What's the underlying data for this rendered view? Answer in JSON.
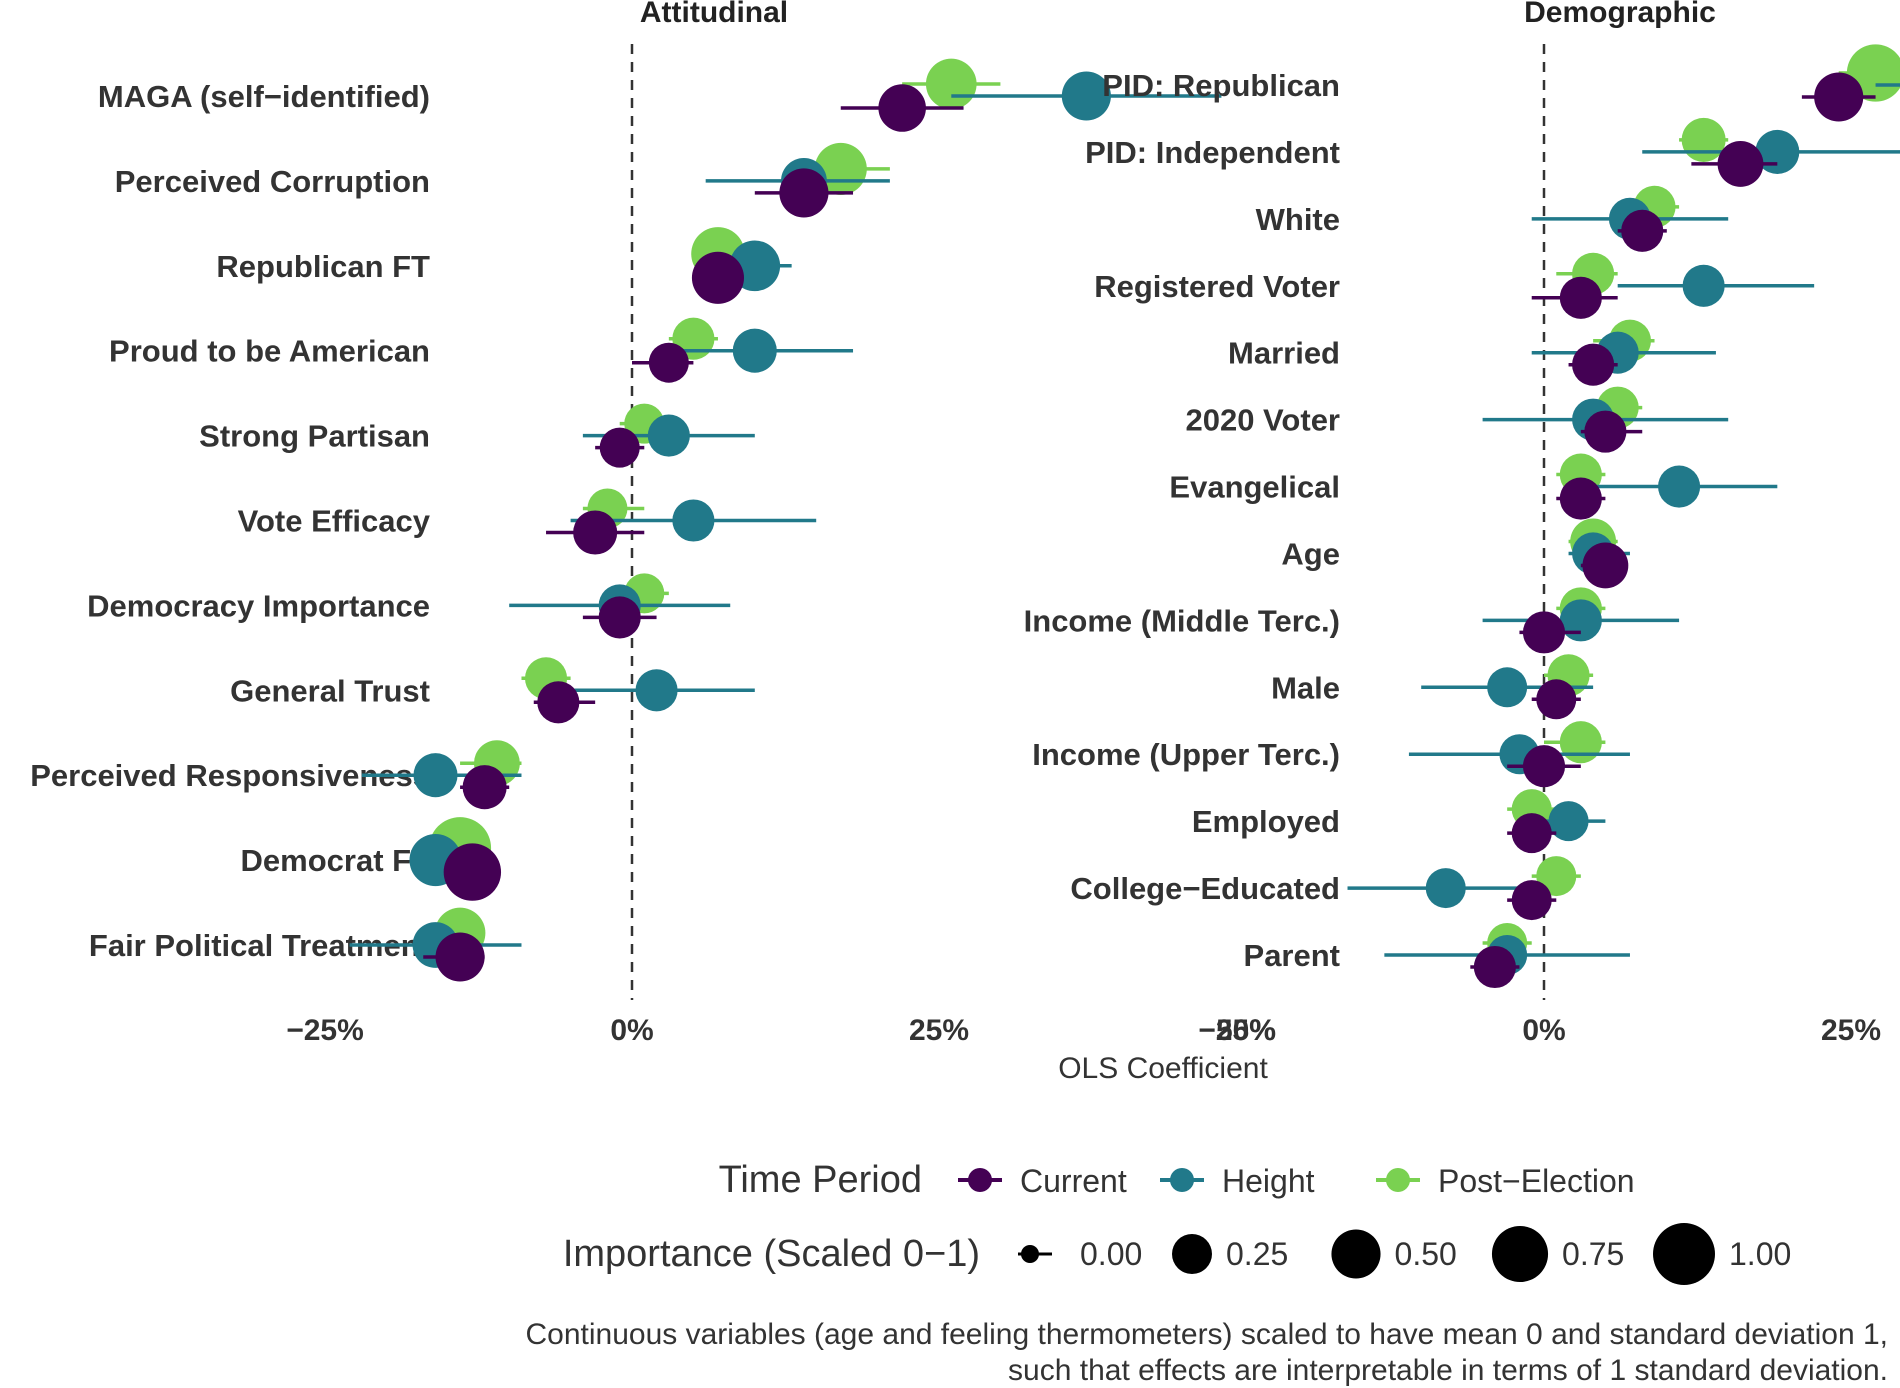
{
  "chart_data": {
    "type": "scatter",
    "xlabel": "OLS Coefficient",
    "xlim": [
      -0.3,
      0.5
    ],
    "x_ticks": [
      "−25%",
      "0%",
      "25%",
      "50%"
    ],
    "x_tick_values": [
      -0.25,
      0,
      0.25,
      0.5
    ],
    "reference_line": 0,
    "series_colors": {
      "Current": "#440154",
      "Height": "#21798a",
      "Post−Election": "#7ad151"
    },
    "legend": {
      "time_title": "Time Period",
      "time_items": [
        "Current",
        "Height",
        "Post−Election"
      ],
      "size_title": "Importance (Scaled 0−1)",
      "size_items": [
        "0.00",
        "0.25",
        "0.50",
        "0.75",
        "1.00"
      ],
      "size_values": [
        0,
        0.25,
        0.5,
        0.75,
        1.0
      ]
    },
    "caption": [
      "Continuous variables (age and feeling thermometers) scaled to have mean 0 and standard deviation 1,",
      "such that effects are interpretable in terms of 1 standard deviation."
    ],
    "panels": [
      {
        "title": "Attitudinal",
        "categories": [
          {
            "label": "MAGA (self−identified)",
            "points": [
              {
                "series": "Post−Election",
                "x": 0.26,
                "lo": 0.22,
                "hi": 0.3,
                "size": 0.55
              },
              {
                "series": "Height",
                "x": 0.37,
                "lo": 0.26,
                "hi": 0.48,
                "size": 0.5
              },
              {
                "series": "Current",
                "x": 0.22,
                "lo": 0.17,
                "hi": 0.27,
                "size": 0.45
              }
            ]
          },
          {
            "label": "Perceived Corruption",
            "points": [
              {
                "series": "Post−Election",
                "x": 0.17,
                "lo": 0.13,
                "hi": 0.21,
                "size": 0.6
              },
              {
                "series": "Height",
                "x": 0.14,
                "lo": 0.06,
                "hi": 0.21,
                "size": 0.4
              },
              {
                "series": "Current",
                "x": 0.14,
                "lo": 0.1,
                "hi": 0.18,
                "size": 0.5
              }
            ]
          },
          {
            "label": "Republican FT",
            "points": [
              {
                "series": "Post−Election",
                "x": 0.07,
                "lo": 0.05,
                "hi": 0.09,
                "size": 0.65
              },
              {
                "series": "Height",
                "x": 0.1,
                "lo": 0.07,
                "hi": 0.13,
                "size": 0.55
              },
              {
                "series": "Current",
                "x": 0.07,
                "lo": 0.05,
                "hi": 0.09,
                "size": 0.6
              }
            ]
          },
          {
            "label": "Proud to be American",
            "points": [
              {
                "series": "Post−Election",
                "x": 0.05,
                "lo": 0.03,
                "hi": 0.07,
                "size": 0.3
              },
              {
                "series": "Height",
                "x": 0.1,
                "lo": 0.03,
                "hi": 0.18,
                "size": 0.35
              },
              {
                "series": "Current",
                "x": 0.03,
                "lo": 0.0,
                "hi": 0.05,
                "size": 0.25
              }
            ]
          },
          {
            "label": "Strong Partisan",
            "points": [
              {
                "series": "Post−Election",
                "x": 0.01,
                "lo": -0.01,
                "hi": 0.03,
                "size": 0.25
              },
              {
                "series": "Height",
                "x": 0.03,
                "lo": -0.04,
                "hi": 0.1,
                "size": 0.3
              },
              {
                "series": "Current",
                "x": -0.01,
                "lo": -0.03,
                "hi": 0.01,
                "size": 0.25
              }
            ]
          },
          {
            "label": "Vote Efficacy",
            "points": [
              {
                "series": "Post−Election",
                "x": -0.02,
                "lo": -0.04,
                "hi": 0.01,
                "size": 0.25
              },
              {
                "series": "Height",
                "x": 0.05,
                "lo": -0.05,
                "hi": 0.15,
                "size": 0.3
              },
              {
                "series": "Current",
                "x": -0.03,
                "lo": -0.07,
                "hi": 0.01,
                "size": 0.35
              }
            ]
          },
          {
            "label": "Democracy Importance",
            "points": [
              {
                "series": "Post−Election",
                "x": 0.01,
                "lo": -0.01,
                "hi": 0.03,
                "size": 0.25
              },
              {
                "series": "Height",
                "x": -0.01,
                "lo": -0.1,
                "hi": 0.08,
                "size": 0.3
              },
              {
                "series": "Current",
                "x": -0.01,
                "lo": -0.04,
                "hi": 0.02,
                "size": 0.3
              }
            ]
          },
          {
            "label": "General Trust",
            "points": [
              {
                "series": "Post−Election",
                "x": -0.07,
                "lo": -0.09,
                "hi": -0.05,
                "size": 0.3
              },
              {
                "series": "Height",
                "x": 0.02,
                "lo": -0.06,
                "hi": 0.1,
                "size": 0.3
              },
              {
                "series": "Current",
                "x": -0.06,
                "lo": -0.08,
                "hi": -0.03,
                "size": 0.3
              }
            ]
          },
          {
            "label": "Perceived Responsiveness",
            "points": [
              {
                "series": "Post−Election",
                "x": -0.11,
                "lo": -0.14,
                "hi": -0.09,
                "size": 0.4
              },
              {
                "series": "Height",
                "x": -0.16,
                "lo": -0.22,
                "hi": -0.09,
                "size": 0.35
              },
              {
                "series": "Current",
                "x": -0.12,
                "lo": -0.14,
                "hi": -0.1,
                "size": 0.35
              }
            ]
          },
          {
            "label": "Democrat FT",
            "points": [
              {
                "series": "Post−Election",
                "x": -0.14,
                "lo": -0.16,
                "hi": -0.12,
                "size": 1.0
              },
              {
                "series": "Height",
                "x": -0.16,
                "lo": -0.18,
                "hi": -0.14,
                "size": 0.6
              },
              {
                "series": "Current",
                "x": -0.13,
                "lo": -0.15,
                "hi": -0.11,
                "size": 0.8
              }
            ]
          },
          {
            "label": "Fair Political Treatment",
            "points": [
              {
                "series": "Post−Election",
                "x": -0.14,
                "lo": -0.17,
                "hi": -0.12,
                "size": 0.55
              },
              {
                "series": "Height",
                "x": -0.16,
                "lo": -0.23,
                "hi": -0.09,
                "size": 0.4
              },
              {
                "series": "Current",
                "x": -0.14,
                "lo": -0.17,
                "hi": -0.12,
                "size": 0.5
              }
            ]
          }
        ]
      },
      {
        "title": "Demographic",
        "categories": [
          {
            "label": "PID: Republican",
            "points": [
              {
                "series": "Post−Election",
                "x": 0.27,
                "lo": 0.24,
                "hi": 0.3,
                "size": 0.8
              },
              {
                "series": "Height",
                "x": 0.33,
                "lo": 0.27,
                "hi": 0.4,
                "size": 0.45
              },
              {
                "series": "Current",
                "x": 0.24,
                "lo": 0.21,
                "hi": 0.27,
                "size": 0.5
              }
            ]
          },
          {
            "label": "PID: Independent",
            "points": [
              {
                "series": "Post−Election",
                "x": 0.13,
                "lo": 0.11,
                "hi": 0.15,
                "size": 0.35
              },
              {
                "series": "Height",
                "x": 0.19,
                "lo": 0.08,
                "hi": 0.3,
                "size": 0.35
              },
              {
                "series": "Current",
                "x": 0.16,
                "lo": 0.12,
                "hi": 0.19,
                "size": 0.4
              }
            ]
          },
          {
            "label": "White",
            "points": [
              {
                "series": "Post−Election",
                "x": 0.09,
                "lo": 0.07,
                "hi": 0.11,
                "size": 0.3
              },
              {
                "series": "Height",
                "x": 0.07,
                "lo": -0.01,
                "hi": 0.15,
                "size": 0.3
              },
              {
                "series": "Current",
                "x": 0.08,
                "lo": 0.06,
                "hi": 0.1,
                "size": 0.3
              }
            ]
          },
          {
            "label": "Registered Voter",
            "points": [
              {
                "series": "Post−Election",
                "x": 0.04,
                "lo": 0.01,
                "hi": 0.06,
                "size": 0.3
              },
              {
                "series": "Height",
                "x": 0.13,
                "lo": 0.06,
                "hi": 0.22,
                "size": 0.3
              },
              {
                "series": "Current",
                "x": 0.03,
                "lo": -0.01,
                "hi": 0.06,
                "size": 0.3
              }
            ]
          },
          {
            "label": "Married",
            "points": [
              {
                "series": "Post−Election",
                "x": 0.07,
                "lo": 0.04,
                "hi": 0.09,
                "size": 0.3
              },
              {
                "series": "Height",
                "x": 0.06,
                "lo": -0.01,
                "hi": 0.14,
                "size": 0.3
              },
              {
                "series": "Current",
                "x": 0.04,
                "lo": 0.02,
                "hi": 0.06,
                "size": 0.3
              }
            ]
          },
          {
            "label": "2020 Voter",
            "points": [
              {
                "series": "Post−Election",
                "x": 0.06,
                "lo": 0.04,
                "hi": 0.08,
                "size": 0.3
              },
              {
                "series": "Height",
                "x": 0.04,
                "lo": -0.05,
                "hi": 0.15,
                "size": 0.3
              },
              {
                "series": "Current",
                "x": 0.05,
                "lo": 0.03,
                "hi": 0.08,
                "size": 0.3
              }
            ]
          },
          {
            "label": "Evangelical",
            "points": [
              {
                "series": "Post−Election",
                "x": 0.03,
                "lo": 0.01,
                "hi": 0.05,
                "size": 0.3
              },
              {
                "series": "Height",
                "x": 0.11,
                "lo": 0.03,
                "hi": 0.19,
                "size": 0.3
              },
              {
                "series": "Current",
                "x": 0.03,
                "lo": 0.01,
                "hi": 0.05,
                "size": 0.3
              }
            ]
          },
          {
            "label": "Age",
            "points": [
              {
                "series": "Post−Election",
                "x": 0.04,
                "lo": 0.02,
                "hi": 0.06,
                "size": 0.4
              },
              {
                "series": "Height",
                "x": 0.04,
                "lo": 0.02,
                "hi": 0.07,
                "size": 0.3
              },
              {
                "series": "Current",
                "x": 0.05,
                "lo": 0.03,
                "hi": 0.06,
                "size": 0.4
              }
            ]
          },
          {
            "label": "Income (Middle Terc.)",
            "points": [
              {
                "series": "Post−Election",
                "x": 0.03,
                "lo": 0.01,
                "hi": 0.05,
                "size": 0.3
              },
              {
                "series": "Height",
                "x": 0.03,
                "lo": -0.05,
                "hi": 0.11,
                "size": 0.3
              },
              {
                "series": "Current",
                "x": 0.0,
                "lo": -0.02,
                "hi": 0.03,
                "size": 0.3
              }
            ]
          },
          {
            "label": "Male",
            "points": [
              {
                "series": "Post−Election",
                "x": 0.02,
                "lo": 0.0,
                "hi": 0.04,
                "size": 0.3
              },
              {
                "series": "Height",
                "x": -0.03,
                "lo": -0.1,
                "hi": 0.04,
                "size": 0.25
              },
              {
                "series": "Current",
                "x": 0.01,
                "lo": -0.01,
                "hi": 0.03,
                "size": 0.25
              }
            ]
          },
          {
            "label": "Income (Upper Terc.)",
            "points": [
              {
                "series": "Post−Election",
                "x": 0.03,
                "lo": 0.0,
                "hi": 0.05,
                "size": 0.3
              },
              {
                "series": "Height",
                "x": -0.02,
                "lo": -0.11,
                "hi": 0.07,
                "size": 0.25
              },
              {
                "series": "Current",
                "x": 0.0,
                "lo": -0.03,
                "hi": 0.03,
                "size": 0.3
              }
            ]
          },
          {
            "label": "Employed",
            "points": [
              {
                "series": "Post−Election",
                "x": -0.01,
                "lo": -0.03,
                "hi": 0.01,
                "size": 0.25
              },
              {
                "series": "Height",
                "x": 0.02,
                "lo": -0.01,
                "hi": 0.05,
                "size": 0.25
              },
              {
                "series": "Current",
                "x": -0.01,
                "lo": -0.03,
                "hi": 0.01,
                "size": 0.25
              }
            ]
          },
          {
            "label": "College−Educated",
            "points": [
              {
                "series": "Post−Election",
                "x": 0.01,
                "lo": -0.01,
                "hi": 0.03,
                "size": 0.25
              },
              {
                "series": "Height",
                "x": -0.08,
                "lo": -0.16,
                "hi": -0.01,
                "size": 0.25
              },
              {
                "series": "Current",
                "x": -0.01,
                "lo": -0.03,
                "hi": 0.01,
                "size": 0.25
              }
            ]
          },
          {
            "label": "Parent",
            "points": [
              {
                "series": "Post−Election",
                "x": -0.03,
                "lo": -0.05,
                "hi": -0.01,
                "size": 0.25
              },
              {
                "series": "Height",
                "x": -0.03,
                "lo": -0.13,
                "hi": 0.07,
                "size": 0.25
              },
              {
                "series": "Current",
                "x": -0.04,
                "lo": -0.06,
                "hi": -0.02,
                "size": 0.3
              }
            ]
          }
        ]
      }
    ]
  }
}
